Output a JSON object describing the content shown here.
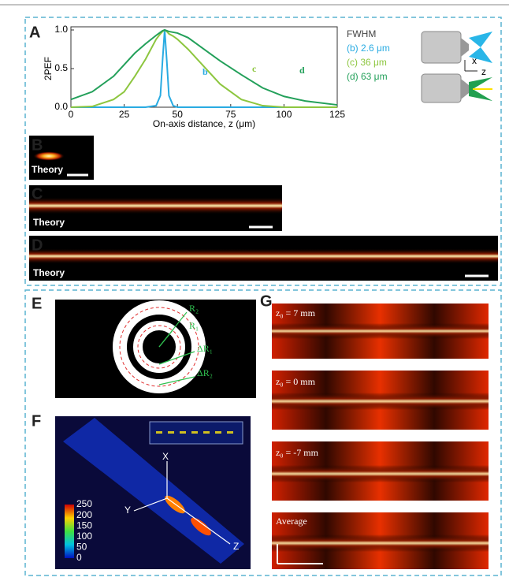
{
  "chart_data": {
    "type": "line",
    "xlabel": "On-axis distance, z (μm)",
    "ylabel": "2PEF",
    "legend_title": "FWHM",
    "x": [
      0,
      10,
      20,
      25,
      30,
      35,
      40,
      42,
      43,
      44,
      45,
      46,
      48,
      50,
      55,
      60,
      70,
      80,
      90,
      100,
      110,
      125
    ],
    "series": [
      {
        "name": "(b) 2.6 μm",
        "label": "b",
        "color": "#29abe2",
        "values": [
          0,
          0,
          0,
          0,
          0,
          0,
          0.02,
          0.15,
          0.6,
          1,
          0.6,
          0.15,
          0.02,
          0,
          0,
          0,
          0,
          0,
          0,
          0,
          0,
          0
        ]
      },
      {
        "name": "(c) 36 μm",
        "label": "c",
        "color": "#8dc63f",
        "values": [
          0,
          0.01,
          0.1,
          0.2,
          0.4,
          0.62,
          0.88,
          0.95,
          0.98,
          1,
          0.98,
          0.95,
          0.92,
          0.88,
          0.75,
          0.6,
          0.3,
          0.1,
          0.02,
          0,
          0,
          0
        ]
      },
      {
        "name": "(d) 63 μm",
        "label": "d",
        "color": "#23a05a",
        "values": [
          0.1,
          0.2,
          0.4,
          0.55,
          0.7,
          0.82,
          0.93,
          0.97,
          0.99,
          1,
          0.99,
          0.98,
          0.97,
          0.96,
          0.9,
          0.8,
          0.6,
          0.42,
          0.25,
          0.14,
          0.08,
          0.03
        ]
      }
    ],
    "xlim": [
      0,
      125
    ],
    "ylim": [
      0,
      1
    ],
    "xticks": [
      0,
      25,
      50,
      75,
      100,
      125
    ],
    "yticks": [
      {
        "value": 0,
        "label": "0.0"
      },
      {
        "value": 0.5,
        "label": "0.5"
      },
      {
        "value": 1,
        "label": "1.0"
      }
    ]
  },
  "panel_labels": [
    "A",
    "B",
    "C",
    "D",
    "E",
    "F",
    "G"
  ],
  "theory": [
    "Theory",
    "Theory",
    "Theory"
  ],
  "axis_icons": [
    "x",
    "z"
  ],
  "rings": [
    "R₂",
    "R₁",
    "ΔR₁",
    "ΔR₂"
  ],
  "volume": {
    "axes": [
      "X",
      "Y",
      "Z"
    ],
    "colorbar": [
      250,
      200,
      150,
      100,
      50,
      0
    ]
  },
  "g_labels": [
    "z₀ = 7 mm",
    "z₀ = 0 mm",
    "z₀ = -7 mm",
    "Average"
  ]
}
